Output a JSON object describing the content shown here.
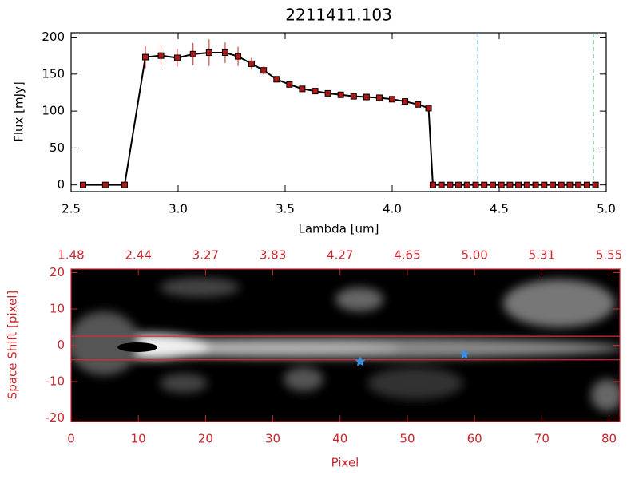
{
  "chart_data": [
    {
      "type": "line",
      "title": "2211411.103",
      "xlabel": "Lambda [um]",
      "ylabel": "Flux [mJy]",
      "xlim": [
        2.5,
        5.0
      ],
      "ylim": [
        -9,
        206
      ],
      "xticks": [
        2.5,
        {
          "value": 3,
          "label": "3.0"
        },
        3.5,
        {
          "value": 4,
          "label": "4.0"
        },
        4.5,
        {
          "value": 5,
          "label": "5.0"
        }
      ],
      "yticks": [
        0,
        50,
        100,
        150,
        200
      ],
      "axis_color": "#000000",
      "series": [
        {
          "color": "#000000",
          "marker_color": "#b01818",
          "error_color": "#d02020",
          "x": [
            2.556,
            2.66,
            2.75,
            2.847,
            2.92,
            2.996,
            3.07,
            3.145,
            3.22,
            3.28,
            3.343,
            3.4,
            3.46,
            3.52,
            3.58,
            3.64,
            3.7,
            3.76,
            3.82,
            3.88,
            3.94,
            4.0,
            4.06,
            4.12,
            4.17,
            4.19,
            4.23,
            4.27,
            4.31,
            4.35,
            4.39,
            4.43,
            4.47,
            4.51,
            4.55,
            4.59,
            4.63,
            4.67,
            4.71,
            4.75,
            4.79,
            4.83,
            4.87,
            4.91,
            4.95
          ],
          "values": [
            0,
            0,
            0,
            173,
            175,
            172,
            177,
            179,
            179,
            174,
            164,
            155,
            143,
            136,
            130,
            127,
            124,
            122,
            120,
            119,
            118,
            116,
            113,
            109,
            104,
            0,
            0,
            0,
            0,
            0,
            0,
            0,
            0,
            0,
            0,
            0,
            0,
            0,
            0,
            0,
            0,
            0,
            0,
            0,
            0
          ],
          "errors": [
            0,
            0,
            0,
            15,
            13,
            12,
            15,
            18,
            14,
            13,
            8,
            6,
            4,
            4,
            3,
            3,
            3,
            3,
            3,
            3,
            3,
            3,
            3,
            3,
            3,
            0,
            0,
            0,
            0,
            0,
            0,
            0,
            0,
            0,
            0,
            0,
            0,
            0,
            0,
            0,
            0,
            0,
            0,
            0,
            0
          ]
        }
      ],
      "vlines": [
        {
          "x": 4.4,
          "color": "#3a8ee0"
        },
        {
          "x": 4.94,
          "color": "#2aa050"
        }
      ]
    },
    {
      "type": "image",
      "xlabel": "Pixel",
      "ylabel": "Space Shift [pixel]",
      "xlim": [
        0,
        81.6
      ],
      "ylim": [
        -21,
        21
      ],
      "xticks": [
        0,
        10,
        20,
        30,
        40,
        50,
        60,
        70,
        80
      ],
      "x2ticks": [
        {
          "value": 0,
          "label": "1.48"
        },
        {
          "value": 10,
          "label": "2.44"
        },
        {
          "value": 20,
          "label": "3.27"
        },
        {
          "value": 30,
          "label": "3.83"
        },
        {
          "value": 40,
          "label": "4.27"
        },
        {
          "value": 50,
          "label": "4.65"
        },
        {
          "value": 60,
          "label": "5.00"
        },
        {
          "value": 70,
          "label": "5.31"
        },
        {
          "value": 80,
          "label": "5.55"
        }
      ],
      "yticks": [
        -20,
        -10,
        0,
        10,
        20
      ],
      "axis_color": "#c8282d",
      "hlines": [
        {
          "y": 2.5,
          "color": "#d03030"
        },
        {
          "y": -4,
          "color": "#d03030"
        }
      ],
      "points": {
        "x": [
          43,
          58.5
        ],
        "y": [
          -4.5,
          -2.5
        ],
        "color": "#3a8ee0"
      }
    }
  ]
}
